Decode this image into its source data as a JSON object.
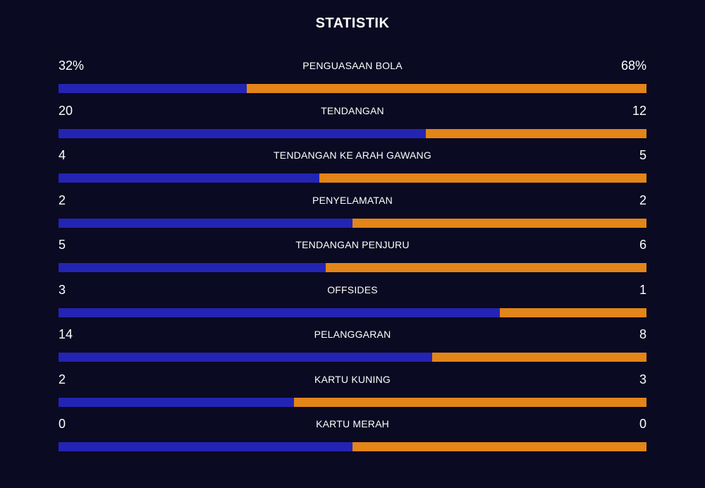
{
  "title": "STATISTIK",
  "colors": {
    "background": "#0a0a22",
    "home": "#2424b4",
    "away": "#e38518"
  },
  "stats": [
    {
      "label": "PENGUASAAN BOLA",
      "home": "32%",
      "away": "68%",
      "home_share": 0.32
    },
    {
      "label": "TENDANGAN",
      "home": "20",
      "away": "12",
      "home_share": 0.625
    },
    {
      "label": "TENDANGAN KE ARAH GAWANG",
      "home": "4",
      "away": "5",
      "home_share": 0.444
    },
    {
      "label": "PENYELAMATAN",
      "home": "2",
      "away": "2",
      "home_share": 0.5
    },
    {
      "label": "TENDANGAN PENJURU",
      "home": "5",
      "away": "6",
      "home_share": 0.455
    },
    {
      "label": "OFFSIDES",
      "home": "3",
      "away": "1",
      "home_share": 0.75
    },
    {
      "label": "PELANGGARAN",
      "home": "14",
      "away": "8",
      "home_share": 0.636
    },
    {
      "label": "KARTU KUNING",
      "home": "2",
      "away": "3",
      "home_share": 0.4
    },
    {
      "label": "KARTU MERAH",
      "home": "0",
      "away": "0",
      "home_share": 0.5
    }
  ]
}
